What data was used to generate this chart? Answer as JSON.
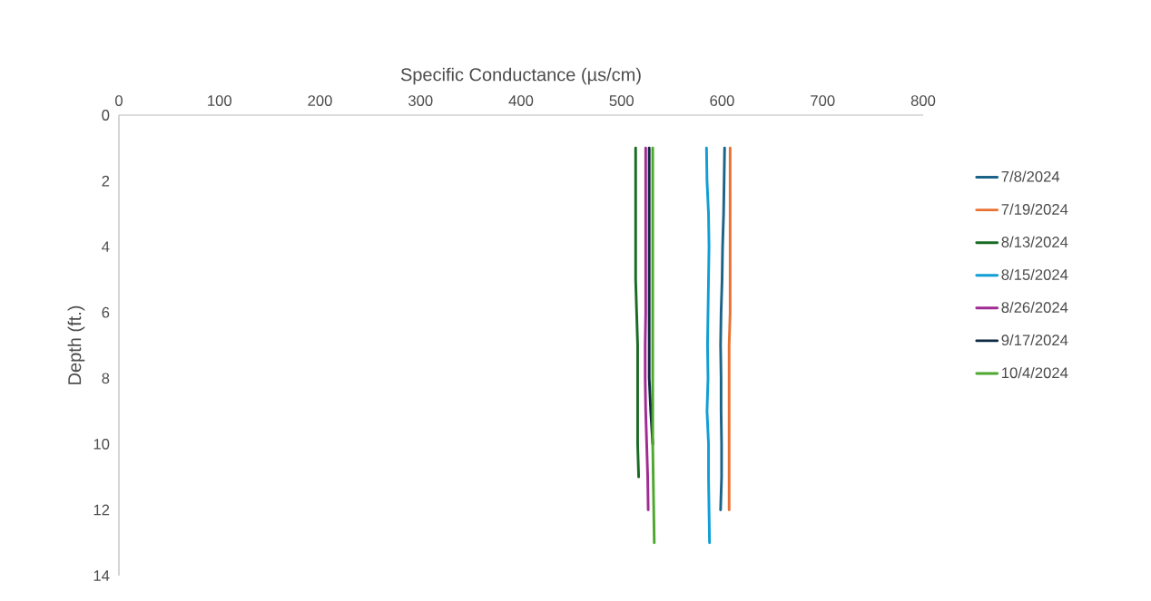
{
  "chart_data": {
    "type": "line",
    "xlabel": "Specific Conductance (µs/cm)",
    "ylabel": "Depth (ft.)",
    "xlim": [
      0,
      800
    ],
    "xticks": [
      0,
      100,
      200,
      300,
      400,
      500,
      600,
      700,
      800
    ],
    "ylim": [
      14,
      0
    ],
    "yticks": [
      0,
      2,
      4,
      6,
      8,
      10,
      12,
      14
    ],
    "grid": false,
    "legend": "right",
    "series": [
      {
        "name": "7/8/2024",
        "color": "#1b6388",
        "x": [
          602.5,
          602,
          601.5,
          600.5,
          600,
          599,
          598.5,
          599,
          599,
          599.5,
          599.5,
          598.5
        ],
        "values": [
          1,
          2,
          3,
          4,
          5,
          6,
          7,
          8,
          9,
          10,
          11,
          12
        ]
      },
      {
        "name": "7/19/2024",
        "color": "#e97132",
        "x": [
          608,
          608,
          608,
          608,
          608,
          608,
          607,
          607,
          607,
          607,
          607,
          607
        ],
        "values": [
          1,
          2,
          3,
          4,
          5,
          6,
          7,
          8,
          9,
          10,
          11,
          12
        ]
      },
      {
        "name": "8/13/2024",
        "color": "#196b24",
        "x": [
          514,
          514,
          514,
          514,
          514,
          515,
          516,
          516,
          516,
          516,
          517
        ],
        "values": [
          1,
          2,
          3,
          4,
          5,
          6,
          7,
          8,
          9,
          10,
          11
        ]
      },
      {
        "name": "8/15/2024",
        "color": "#0f9ed5",
        "x": [
          584.5,
          585,
          586.5,
          587,
          586.5,
          586,
          585.5,
          586,
          585,
          586.5,
          586.5,
          587,
          587.5
        ],
        "values": [
          1,
          2,
          3,
          4,
          5,
          6,
          7,
          8,
          9,
          10,
          11,
          12,
          13
        ]
      },
      {
        "name": "8/26/2024",
        "color": "#a02b93",
        "x": [
          524,
          524,
          524,
          524,
          524,
          524,
          523.5,
          523.5,
          524,
          525,
          526,
          526.5
        ],
        "values": [
          1,
          2,
          3,
          4,
          5,
          6,
          7,
          8,
          9,
          10,
          11,
          12
        ]
      },
      {
        "name": "9/17/2024",
        "color": "#0e2841",
        "x": [
          527.5,
          527.5,
          527.5,
          527.5,
          527.5,
          527.5,
          527.5,
          527.5,
          529,
          531
        ],
        "values": [
          1,
          2,
          3,
          4,
          5,
          6,
          7,
          8,
          9,
          10
        ]
      },
      {
        "name": "10/4/2024",
        "color": "#4ea72e",
        "x": [
          531,
          531,
          531,
          531,
          531,
          531,
          531,
          531,
          531,
          531,
          531.5,
          532,
          532.5
        ],
        "values": [
          1,
          2,
          3,
          4,
          5,
          6,
          7,
          8,
          9,
          10,
          11,
          12,
          13
        ]
      }
    ]
  }
}
